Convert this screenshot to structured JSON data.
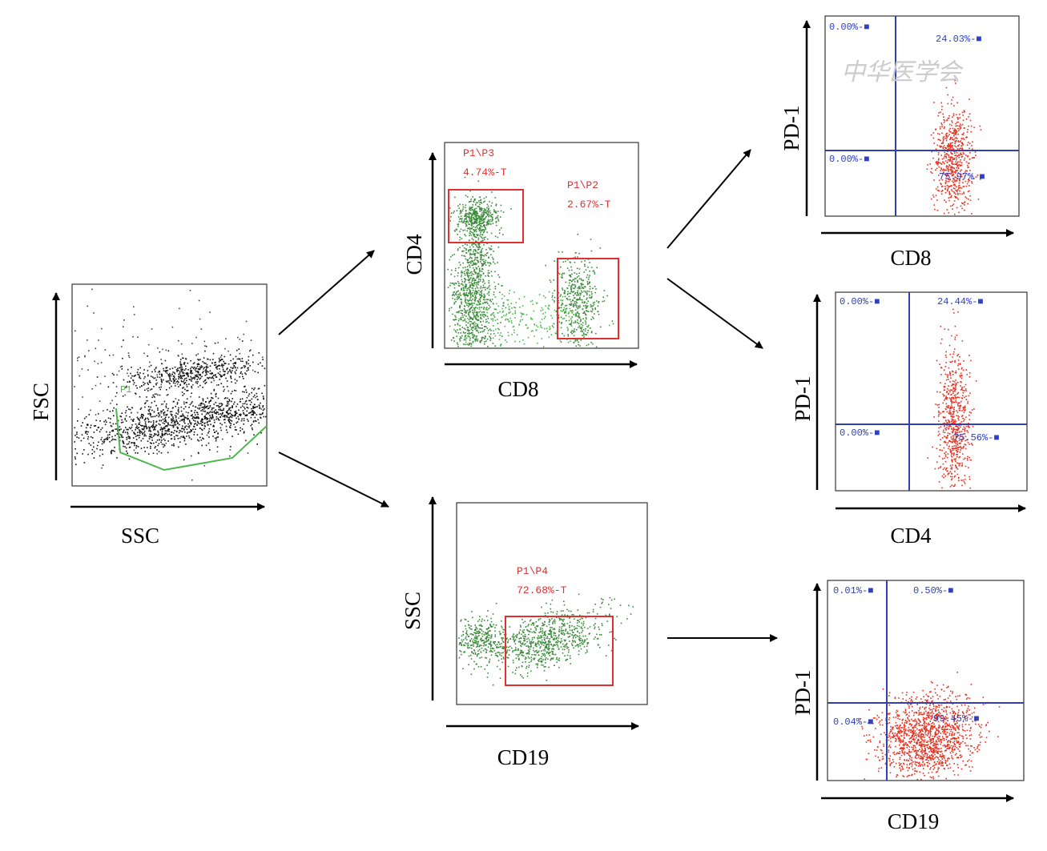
{
  "watermark": "中华医学会",
  "panels": [
    {
      "x_label": "SSC",
      "y_label": "FSC",
      "gates": [
        {
          "lines": [
            "P1"
          ]
        }
      ]
    },
    {
      "x_label": "CD8",
      "y_label": "CD4",
      "gates": [
        {
          "lines": [
            "P1\\P3",
            "4.74%-T"
          ]
        },
        {
          "lines": [
            "P1\\P2",
            "2.67%-T"
          ]
        }
      ]
    },
    {
      "x_label": "CD19",
      "y_label": "SSC",
      "gates": [
        {
          "lines": [
            "P1\\P4",
            "72.68%-T"
          ]
        }
      ]
    },
    {
      "x_label": "CD8",
      "y_label": "PD-1",
      "quadrants": [
        "0.00%-■",
        "24.03%-■",
        "0.00%-■",
        "75.97%-■"
      ]
    },
    {
      "x_label": "CD4",
      "y_label": "PD-1",
      "quadrants": [
        "0.00%-■",
        "24.44%-■",
        "0.00%-■",
        "75.56%-■"
      ]
    },
    {
      "x_label": "CD19",
      "y_label": "PD-1",
      "quadrants": [
        "0.01%-■",
        "0.50%-■",
        "0.04%-■",
        "99.45%-■"
      ]
    }
  ]
}
